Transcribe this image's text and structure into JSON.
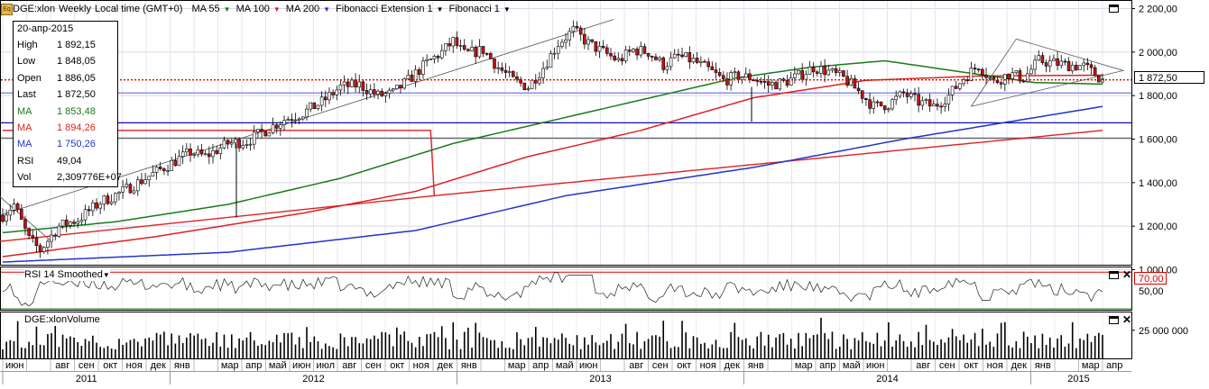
{
  "header": {
    "symbol": "DGE:xlon",
    "period": "Weekly",
    "time_zone": "Local time (GMT+0)",
    "indicators": [
      {
        "label": "MA 55",
        "color": "#1a7a1a"
      },
      {
        "label": "MA 100",
        "color": "#dd2222"
      },
      {
        "label": "MA 200",
        "color": "#2233cc"
      },
      {
        "label": "Fibonacci Extension 1",
        "color": "#000000"
      },
      {
        "label": "Fibonacci 1",
        "color": "#000000"
      }
    ]
  },
  "info_box": {
    "date": "20-апр-2015",
    "rows": [
      {
        "key": "High",
        "value": "1 892,15",
        "color": "#000000"
      },
      {
        "key": "Low",
        "value": "1 848,05",
        "color": "#000000"
      },
      {
        "key": "Open",
        "value": "1 886,05",
        "color": "#000000"
      },
      {
        "key": "Last",
        "value": "1 872,50",
        "color": "#000000"
      },
      {
        "key": "MA",
        "value": "1 853,48",
        "color": "#1a7a1a"
      },
      {
        "key": "MA",
        "value": "1 894,26",
        "color": "#dd2222"
      },
      {
        "key": "MA",
        "value": "1 750,26",
        "color": "#2233cc"
      },
      {
        "key": "RSI",
        "value": "49,04",
        "color": "#000000"
      },
      {
        "key": "Vol",
        "value": "2,309776E+07",
        "color": "#000000"
      }
    ]
  },
  "current_price_label": "1 872,50",
  "rsi_panel": {
    "title": "RSI 14 Smoothed",
    "overbought_label": "70,00",
    "mid_label": "50,00"
  },
  "volume_panel": {
    "title": "DGE:xlonVolume",
    "axis_label": "25 000 000"
  },
  "colors": {
    "up_candle": "#ffffff",
    "down_candle": "#cc1111",
    "grid": "#d8d8e8",
    "bg": "#ffffff"
  },
  "chart_data": {
    "type": "candlestick",
    "price_axis": {
      "min": 1000,
      "max": 2200,
      "ticks": [
        "1 000,00",
        "1 200,00",
        "1 400,00",
        "1 600,00",
        "1 800,00",
        "2 000,00",
        "2 200,00"
      ],
      "tick_values": [
        1000,
        1200,
        1400,
        1600,
        1800,
        2000,
        2200
      ]
    },
    "month_labels": [
      "июн",
      "июл",
      "авг",
      "сен",
      "окт",
      "ноя",
      "дек",
      "янв",
      "фев",
      "мар",
      "апр",
      "май",
      "июн",
      "июл",
      "авг",
      "сен",
      "окт",
      "ноя",
      "дек",
      "янв",
      "фев",
      "мар",
      "апр",
      "май",
      "июн",
      "июл",
      "авг",
      "сен",
      "окт",
      "ноя",
      "дек",
      "янв",
      "фев",
      "мар",
      "апр",
      "май",
      "июн",
      "июл",
      "авг",
      "сен",
      "окт",
      "ноя",
      "дек",
      "янв",
      "фев",
      "мар",
      "апр"
    ],
    "month_label_visible": [
      true,
      false,
      true,
      true,
      true,
      true,
      true,
      true,
      false,
      true,
      true,
      true,
      true,
      true,
      true,
      true,
      true,
      true,
      true,
      true,
      false,
      true,
      true,
      true,
      true,
      false,
      true,
      true,
      true,
      true,
      true,
      true,
      false,
      true,
      true,
      true,
      true,
      false,
      true,
      true,
      true,
      true,
      true,
      true,
      false,
      true,
      true
    ],
    "year_labels": [
      {
        "label": "2011",
        "start_month": 0,
        "end_month": 6
      },
      {
        "label": "2012",
        "start_month": 7,
        "end_month": 18
      },
      {
        "label": "2013",
        "start_month": 19,
        "end_month": 30
      },
      {
        "label": "2014",
        "start_month": 31,
        "end_month": 42
      },
      {
        "label": "2015",
        "start_month": 43,
        "end_month": 46
      }
    ],
    "price_keypoints": [
      [
        0,
        1250
      ],
      [
        3,
        1300
      ],
      [
        7,
        1140
      ],
      [
        10,
        1090
      ],
      [
        15,
        1200
      ],
      [
        20,
        1230
      ],
      [
        26,
        1310
      ],
      [
        32,
        1360
      ],
      [
        38,
        1420
      ],
      [
        44,
        1480
      ],
      [
        50,
        1540
      ],
      [
        54,
        1520
      ],
      [
        60,
        1580
      ],
      [
        65,
        1590
      ],
      [
        70,
        1640
      ],
      [
        75,
        1690
      ],
      [
        80,
        1720
      ],
      [
        85,
        1770
      ],
      [
        90,
        1840
      ],
      [
        95,
        1850
      ],
      [
        100,
        1800
      ],
      [
        104,
        1810
      ],
      [
        108,
        1870
      ],
      [
        113,
        1950
      ],
      [
        117,
        2000
      ],
      [
        120,
        2050
      ],
      [
        123,
        1990
      ],
      [
        128,
        2010
      ],
      [
        132,
        1930
      ],
      [
        136,
        1870
      ],
      [
        140,
        1840
      ],
      [
        144,
        1930
      ],
      [
        148,
        2040
      ],
      [
        152,
        2100
      ],
      [
        156,
        2040
      ],
      [
        160,
        2000
      ],
      [
        164,
        1960
      ],
      [
        168,
        2010
      ],
      [
        172,
        2000
      ],
      [
        176,
        1940
      ],
      [
        180,
        1980
      ],
      [
        184,
        1960
      ],
      [
        188,
        1920
      ],
      [
        192,
        1870
      ],
      [
        196,
        1890
      ],
      [
        200,
        1880
      ],
      [
        204,
        1850
      ],
      [
        208,
        1860
      ],
      [
        212,
        1890
      ],
      [
        216,
        1930
      ],
      [
        220,
        1910
      ],
      [
        224,
        1880
      ],
      [
        228,
        1820
      ],
      [
        232,
        1750
      ],
      [
        236,
        1760
      ],
      [
        240,
        1810
      ],
      [
        244,
        1770
      ],
      [
        248,
        1750
      ],
      [
        252,
        1800
      ],
      [
        256,
        1880
      ],
      [
        260,
        1940
      ],
      [
        264,
        1860
      ],
      [
        268,
        1900
      ],
      [
        272,
        1880
      ],
      [
        276,
        1960
      ],
      [
        280,
        1950
      ],
      [
        284,
        1940
      ],
      [
        288,
        1935
      ],
      [
        293,
        1873
      ]
    ],
    "ma55_keypoints": [
      [
        0,
        1170
      ],
      [
        30,
        1220
      ],
      [
        60,
        1300
      ],
      [
        90,
        1420
      ],
      [
        120,
        1580
      ],
      [
        150,
        1700
      ],
      [
        175,
        1800
      ],
      [
        195,
        1880
      ],
      [
        215,
        1930
      ],
      [
        235,
        1960
      ],
      [
        255,
        1910
      ],
      [
        275,
        1860
      ],
      [
        293,
        1853
      ]
    ],
    "ma100_keypoints": [
      [
        0,
        1060
      ],
      [
        40,
        1150
      ],
      [
        80,
        1260
      ],
      [
        110,
        1360
      ],
      [
        140,
        1520
      ],
      [
        170,
        1640
      ],
      [
        200,
        1790
      ],
      [
        230,
        1870
      ],
      [
        260,
        1890
      ],
      [
        293,
        1894
      ]
    ],
    "ma200_keypoints": [
      [
        0,
        1035
      ],
      [
        60,
        1080
      ],
      [
        110,
        1180
      ],
      [
        150,
        1340
      ],
      [
        200,
        1470
      ],
      [
        240,
        1600
      ],
      [
        293,
        1750
      ]
    ],
    "extra_line_keypoints": [
      [
        115,
        1340
      ],
      [
        293,
        1640
      ]
    ],
    "horizontal_levels": [
      {
        "value": 1812,
        "color": "#7777ee"
      },
      {
        "value": 1675,
        "color": "#1010aa"
      },
      {
        "value": 1605,
        "color": "#555555"
      }
    ],
    "last_price": 1872.5,
    "rsi": {
      "min": 30,
      "max": 75,
      "overbought": 70,
      "mid": 50,
      "last": 49.04
    },
    "volume": {
      "axis_value": 25000000,
      "max": 40000000
    }
  }
}
